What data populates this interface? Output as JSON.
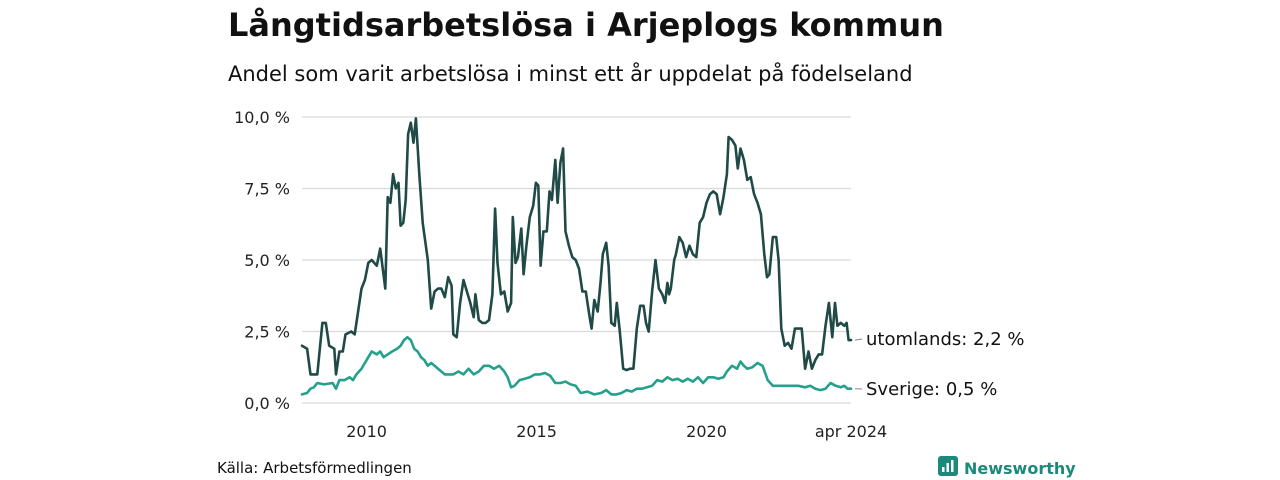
{
  "header": {
    "title": "Långtidsarbetslösa i Arjeplogs kommun",
    "subtitle": "Andel som varit arbetslösa i minst ett år uppdelat på födelseland"
  },
  "footer": {
    "source": "Källa: Arbetsförmedlingen",
    "brand": "Newsworthy"
  },
  "colors": {
    "utomlands": "#1f4a45",
    "sverige": "#24a08c",
    "grid": "#d9d9d9",
    "brand": "#1b8a7a"
  },
  "chart_data": {
    "type": "line",
    "title": "Långtidsarbetslösa i Arjeplogs kommun",
    "ylim": [
      0,
      10
    ],
    "yticks": [
      0,
      2.5,
      5,
      7.5,
      10
    ],
    "ytick_labels": [
      "0,0 %",
      "2,5 %",
      "5,0 %",
      "7,5 %",
      "10,0 %"
    ],
    "xticks": [
      2010,
      2015,
      2020,
      2024.25
    ],
    "xtick_labels": [
      "2010",
      "2015",
      "2020",
      "apr 2024"
    ],
    "x_range": [
      2008.1,
      2024.25
    ],
    "series": [
      {
        "name": "utomlands",
        "label": "utomlands: 2,2 %",
        "points": [
          [
            2008.1,
            2.0
          ],
          [
            2008.25,
            1.9
          ],
          [
            2008.35,
            1.0
          ],
          [
            2008.55,
            1.0
          ],
          [
            2008.7,
            2.8
          ],
          [
            2008.8,
            2.8
          ],
          [
            2008.9,
            2.0
          ],
          [
            2009.05,
            1.9
          ],
          [
            2009.1,
            1.0
          ],
          [
            2009.2,
            1.8
          ],
          [
            2009.3,
            1.8
          ],
          [
            2009.38,
            2.4
          ],
          [
            2009.55,
            2.5
          ],
          [
            2009.65,
            2.4
          ],
          [
            2009.75,
            3.2
          ],
          [
            2009.85,
            4.0
          ],
          [
            2009.95,
            4.3
          ],
          [
            2010.05,
            4.9
          ],
          [
            2010.15,
            5.0
          ],
          [
            2010.3,
            4.8
          ],
          [
            2010.4,
            5.4
          ],
          [
            2010.55,
            4.0
          ],
          [
            2010.62,
            7.2
          ],
          [
            2010.7,
            7.0
          ],
          [
            2010.78,
            8.0
          ],
          [
            2010.86,
            7.5
          ],
          [
            2010.94,
            7.7
          ],
          [
            2011.0,
            6.2
          ],
          [
            2011.08,
            6.3
          ],
          [
            2011.15,
            7.1
          ],
          [
            2011.22,
            9.4
          ],
          [
            2011.3,
            9.8
          ],
          [
            2011.38,
            9.1
          ],
          [
            2011.45,
            9.95
          ],
          [
            2011.55,
            8.0
          ],
          [
            2011.65,
            6.3
          ],
          [
            2011.8,
            5.0
          ],
          [
            2011.9,
            3.3
          ],
          [
            2012.0,
            3.9
          ],
          [
            2012.1,
            4.0
          ],
          [
            2012.2,
            4.0
          ],
          [
            2012.3,
            3.7
          ],
          [
            2012.4,
            4.4
          ],
          [
            2012.5,
            4.1
          ],
          [
            2012.55,
            2.4
          ],
          [
            2012.65,
            2.3
          ],
          [
            2012.75,
            3.5
          ],
          [
            2012.85,
            4.3
          ],
          [
            2012.95,
            3.9
          ],
          [
            2013.05,
            3.5
          ],
          [
            2013.15,
            3.0
          ],
          [
            2013.2,
            3.8
          ],
          [
            2013.3,
            2.9
          ],
          [
            2013.4,
            2.8
          ],
          [
            2013.5,
            2.8
          ],
          [
            2013.6,
            2.9
          ],
          [
            2013.7,
            3.8
          ],
          [
            2013.78,
            6.8
          ],
          [
            2013.85,
            4.9
          ],
          [
            2013.95,
            3.8
          ],
          [
            2014.05,
            3.9
          ],
          [
            2014.15,
            3.2
          ],
          [
            2014.25,
            3.5
          ],
          [
            2014.3,
            6.5
          ],
          [
            2014.38,
            4.9
          ],
          [
            2014.45,
            5.1
          ],
          [
            2014.55,
            6.1
          ],
          [
            2014.62,
            4.5
          ],
          [
            2014.7,
            5.5
          ],
          [
            2014.8,
            6.5
          ],
          [
            2014.9,
            6.9
          ],
          [
            2014.98,
            7.7
          ],
          [
            2015.05,
            7.6
          ],
          [
            2015.12,
            4.8
          ],
          [
            2015.2,
            6.0
          ],
          [
            2015.3,
            6.0
          ],
          [
            2015.38,
            7.4
          ],
          [
            2015.45,
            7.1
          ],
          [
            2015.55,
            8.5
          ],
          [
            2015.62,
            7.0
          ],
          [
            2015.7,
            8.4
          ],
          [
            2015.78,
            8.9
          ],
          [
            2015.85,
            6.0
          ],
          [
            2015.95,
            5.5
          ],
          [
            2016.05,
            5.1
          ],
          [
            2016.15,
            5.0
          ],
          [
            2016.25,
            4.7
          ],
          [
            2016.35,
            3.9
          ],
          [
            2016.45,
            3.9
          ],
          [
            2016.55,
            3.1
          ],
          [
            2016.62,
            2.6
          ],
          [
            2016.7,
            3.6
          ],
          [
            2016.8,
            3.2
          ],
          [
            2016.88,
            4.2
          ],
          [
            2016.95,
            5.2
          ],
          [
            2017.05,
            5.6
          ],
          [
            2017.12,
            4.8
          ],
          [
            2017.2,
            2.8
          ],
          [
            2017.3,
            2.7
          ],
          [
            2017.36,
            3.5
          ],
          [
            2017.45,
            2.5
          ],
          [
            2017.55,
            1.2
          ],
          [
            2017.65,
            1.15
          ],
          [
            2017.75,
            1.2
          ],
          [
            2017.85,
            1.2
          ],
          [
            2017.95,
            2.6
          ],
          [
            2018.05,
            3.4
          ],
          [
            2018.15,
            3.4
          ],
          [
            2018.22,
            2.8
          ],
          [
            2018.3,
            2.5
          ],
          [
            2018.4,
            3.9
          ],
          [
            2018.5,
            5.0
          ],
          [
            2018.6,
            4.0
          ],
          [
            2018.7,
            3.8
          ],
          [
            2018.78,
            3.5
          ],
          [
            2018.85,
            4.2
          ],
          [
            2018.9,
            3.8
          ],
          [
            2018.95,
            4.0
          ],
          [
            2019.05,
            5.0
          ],
          [
            2019.1,
            5.2
          ],
          [
            2019.2,
            5.8
          ],
          [
            2019.3,
            5.6
          ],
          [
            2019.4,
            5.1
          ],
          [
            2019.5,
            5.5
          ],
          [
            2019.6,
            5.2
          ],
          [
            2019.7,
            5.1
          ],
          [
            2019.8,
            6.3
          ],
          [
            2019.9,
            6.5
          ],
          [
            2020.0,
            7.0
          ],
          [
            2020.1,
            7.3
          ],
          [
            2020.2,
            7.4
          ],
          [
            2020.3,
            7.3
          ],
          [
            2020.4,
            6.6
          ],
          [
            2020.5,
            7.2
          ],
          [
            2020.6,
            8.0
          ],
          [
            2020.65,
            9.3
          ],
          [
            2020.75,
            9.2
          ],
          [
            2020.85,
            9.0
          ],
          [
            2020.92,
            8.2
          ],
          [
            2021.0,
            8.9
          ],
          [
            2021.1,
            8.5
          ],
          [
            2021.2,
            7.8
          ],
          [
            2021.3,
            7.9
          ],
          [
            2021.4,
            7.3
          ],
          [
            2021.5,
            7.0
          ],
          [
            2021.6,
            6.6
          ],
          [
            2021.7,
            5.2
          ],
          [
            2021.78,
            4.4
          ],
          [
            2021.85,
            4.5
          ],
          [
            2021.95,
            5.8
          ],
          [
            2022.05,
            5.8
          ],
          [
            2022.12,
            5.0
          ],
          [
            2022.2,
            2.6
          ],
          [
            2022.3,
            2.0
          ],
          [
            2022.4,
            2.1
          ],
          [
            2022.5,
            1.9
          ],
          [
            2022.6,
            2.6
          ],
          [
            2022.7,
            2.6
          ],
          [
            2022.8,
            2.6
          ],
          [
            2022.85,
            1.9
          ],
          [
            2022.9,
            1.2
          ],
          [
            2023.0,
            1.8
          ],
          [
            2023.1,
            1.2
          ],
          [
            2023.2,
            1.5
          ],
          [
            2023.3,
            1.7
          ],
          [
            2023.4,
            1.7
          ],
          [
            2023.5,
            2.7
          ],
          [
            2023.6,
            3.5
          ],
          [
            2023.7,
            2.3
          ],
          [
            2023.78,
            3.5
          ],
          [
            2023.85,
            2.7
          ],
          [
            2023.95,
            2.8
          ],
          [
            2024.05,
            2.7
          ],
          [
            2024.12,
            2.8
          ],
          [
            2024.18,
            2.2
          ],
          [
            2024.25,
            2.2
          ]
        ]
      },
      {
        "name": "Sverige",
        "label": "Sverige: 0,5 %",
        "points": [
          [
            2008.1,
            0.3
          ],
          [
            2008.25,
            0.35
          ],
          [
            2008.35,
            0.5
          ],
          [
            2008.45,
            0.55
          ],
          [
            2008.55,
            0.7
          ],
          [
            2008.75,
            0.65
          ],
          [
            2009.0,
            0.7
          ],
          [
            2009.1,
            0.5
          ],
          [
            2009.2,
            0.8
          ],
          [
            2009.35,
            0.8
          ],
          [
            2009.5,
            0.9
          ],
          [
            2009.6,
            0.8
          ],
          [
            2009.7,
            1.0
          ],
          [
            2009.85,
            1.2
          ],
          [
            2009.95,
            1.4
          ],
          [
            2010.05,
            1.6
          ],
          [
            2010.15,
            1.8
          ],
          [
            2010.3,
            1.7
          ],
          [
            2010.4,
            1.8
          ],
          [
            2010.5,
            1.6
          ],
          [
            2010.62,
            1.7
          ],
          [
            2010.75,
            1.8
          ],
          [
            2010.9,
            1.9
          ],
          [
            2011.0,
            2.0
          ],
          [
            2011.1,
            2.2
          ],
          [
            2011.2,
            2.3
          ],
          [
            2011.3,
            2.2
          ],
          [
            2011.4,
            1.9
          ],
          [
            2011.5,
            1.8
          ],
          [
            2011.6,
            1.6
          ],
          [
            2011.7,
            1.5
          ],
          [
            2011.8,
            1.3
          ],
          [
            2011.9,
            1.4
          ],
          [
            2012.0,
            1.3
          ],
          [
            2012.1,
            1.2
          ],
          [
            2012.2,
            1.1
          ],
          [
            2012.3,
            1.0
          ],
          [
            2012.45,
            1.0
          ],
          [
            2012.55,
            1.0
          ],
          [
            2012.7,
            1.1
          ],
          [
            2012.85,
            1.0
          ],
          [
            2013.0,
            1.2
          ],
          [
            2013.15,
            1.0
          ],
          [
            2013.3,
            1.1
          ],
          [
            2013.45,
            1.3
          ],
          [
            2013.6,
            1.3
          ],
          [
            2013.75,
            1.2
          ],
          [
            2013.9,
            1.3
          ],
          [
            2014.05,
            1.1
          ],
          [
            2014.15,
            0.9
          ],
          [
            2014.25,
            0.55
          ],
          [
            2014.35,
            0.6
          ],
          [
            2014.5,
            0.8
          ],
          [
            2014.65,
            0.85
          ],
          [
            2014.8,
            0.9
          ],
          [
            2014.95,
            1.0
          ],
          [
            2015.1,
            1.0
          ],
          [
            2015.25,
            1.05
          ],
          [
            2015.4,
            0.95
          ],
          [
            2015.55,
            0.7
          ],
          [
            2015.7,
            0.7
          ],
          [
            2015.85,
            0.75
          ],
          [
            2016.0,
            0.65
          ],
          [
            2016.15,
            0.6
          ],
          [
            2016.3,
            0.35
          ],
          [
            2016.5,
            0.4
          ],
          [
            2016.7,
            0.3
          ],
          [
            2016.9,
            0.35
          ],
          [
            2017.05,
            0.45
          ],
          [
            2017.2,
            0.3
          ],
          [
            2017.35,
            0.3
          ],
          [
            2017.5,
            0.35
          ],
          [
            2017.65,
            0.45
          ],
          [
            2017.8,
            0.4
          ],
          [
            2017.95,
            0.5
          ],
          [
            2018.1,
            0.5
          ],
          [
            2018.25,
            0.55
          ],
          [
            2018.4,
            0.6
          ],
          [
            2018.55,
            0.8
          ],
          [
            2018.7,
            0.75
          ],
          [
            2018.85,
            0.9
          ],
          [
            2019.0,
            0.8
          ],
          [
            2019.15,
            0.85
          ],
          [
            2019.3,
            0.75
          ],
          [
            2019.45,
            0.85
          ],
          [
            2019.6,
            0.75
          ],
          [
            2019.75,
            0.9
          ],
          [
            2019.9,
            0.7
          ],
          [
            2020.05,
            0.9
          ],
          [
            2020.2,
            0.9
          ],
          [
            2020.35,
            0.85
          ],
          [
            2020.5,
            0.9
          ],
          [
            2020.6,
            1.1
          ],
          [
            2020.75,
            1.3
          ],
          [
            2020.9,
            1.2
          ],
          [
            2021.0,
            1.45
          ],
          [
            2021.1,
            1.3
          ],
          [
            2021.2,
            1.2
          ],
          [
            2021.35,
            1.25
          ],
          [
            2021.5,
            1.4
          ],
          [
            2021.65,
            1.3
          ],
          [
            2021.8,
            0.8
          ],
          [
            2021.95,
            0.6
          ],
          [
            2022.1,
            0.6
          ],
          [
            2022.3,
            0.6
          ],
          [
            2022.5,
            0.6
          ],
          [
            2022.7,
            0.6
          ],
          [
            2022.9,
            0.55
          ],
          [
            2023.05,
            0.6
          ],
          [
            2023.2,
            0.5
          ],
          [
            2023.35,
            0.45
          ],
          [
            2023.5,
            0.5
          ],
          [
            2023.65,
            0.7
          ],
          [
            2023.8,
            0.6
          ],
          [
            2023.95,
            0.55
          ],
          [
            2024.05,
            0.6
          ],
          [
            2024.15,
            0.5
          ],
          [
            2024.25,
            0.5
          ]
        ]
      }
    ]
  }
}
